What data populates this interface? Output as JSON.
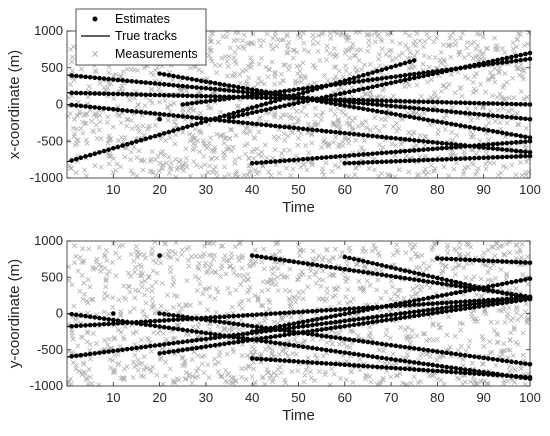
{
  "chart_data": [
    {
      "type": "scatter",
      "xlabel": "Time",
      "ylabel": "x-coordinate (m)",
      "xlim": [
        0,
        100
      ],
      "ylim": [
        -1000,
        1000
      ],
      "xticks": [
        10,
        20,
        30,
        40,
        50,
        60,
        70,
        80,
        90,
        100
      ],
      "yticks": [
        -1000,
        -500,
        0,
        500,
        1000
      ],
      "grid": false,
      "legend": {
        "placement": "top-left",
        "entries": [
          {
            "label": "Estimates",
            "marker": "dot",
            "color": "#000000"
          },
          {
            "label": "True tracks",
            "marker": "line",
            "color": "#000000"
          },
          {
            "label": "Measurements",
            "marker": "x",
            "color": "#b0b0b0"
          }
        ]
      },
      "tracks": [
        {
          "start": 0,
          "end": 100,
          "y0": 400,
          "y1": -200
        },
        {
          "start": 0,
          "end": 100,
          "y0": 0,
          "y1": -650
        },
        {
          "start": 0,
          "end": 75,
          "y0": -780,
          "y1": 600
        },
        {
          "start": 0,
          "end": 100,
          "y0": 160,
          "y1": 0
        },
        {
          "start": 20,
          "end": 100,
          "y0": 420,
          "y1": -450
        },
        {
          "start": 25,
          "end": 100,
          "y0": 0,
          "y1": 620
        },
        {
          "start": 35,
          "end": 100,
          "y0": -180,
          "y1": 700
        },
        {
          "start": 40,
          "end": 100,
          "y0": -800,
          "y1": -500
        },
        {
          "start": 60,
          "end": 100,
          "y0": -800,
          "y1": -700
        }
      ],
      "outliers": [
        {
          "x": 20,
          "y": -200
        }
      ]
    },
    {
      "type": "scatter",
      "xlabel": "Time",
      "ylabel": "y-coordinate (m)",
      "xlim": [
        0,
        100
      ],
      "ylim": [
        -1000,
        1000
      ],
      "xticks": [
        10,
        20,
        30,
        40,
        50,
        60,
        70,
        80,
        90,
        100
      ],
      "yticks": [
        -1000,
        -500,
        0,
        500,
        1000
      ],
      "grid": false,
      "tracks": [
        {
          "start": 0,
          "end": 100,
          "y0": 0,
          "y1": -900
        },
        {
          "start": 0,
          "end": 100,
          "y0": -600,
          "y1": 230
        },
        {
          "start": 0,
          "end": 100,
          "y0": -180,
          "y1": 220
        },
        {
          "start": 20,
          "end": 100,
          "y0": 0,
          "y1": -700
        },
        {
          "start": 20,
          "end": 100,
          "y0": -550,
          "y1": 200
        },
        {
          "start": 40,
          "end": 100,
          "y0": 800,
          "y1": 230
        },
        {
          "start": 60,
          "end": 100,
          "y0": 780,
          "y1": 200
        },
        {
          "start": 40,
          "end": 100,
          "y0": -620,
          "y1": -880
        },
        {
          "start": 40,
          "end": 100,
          "y0": -250,
          "y1": 480
        },
        {
          "start": 80,
          "end": 100,
          "y0": 760,
          "y1": 700
        }
      ],
      "outliers": [
        {
          "x": 20,
          "y": 800
        },
        {
          "x": 10,
          "y": 0
        }
      ]
    }
  ]
}
